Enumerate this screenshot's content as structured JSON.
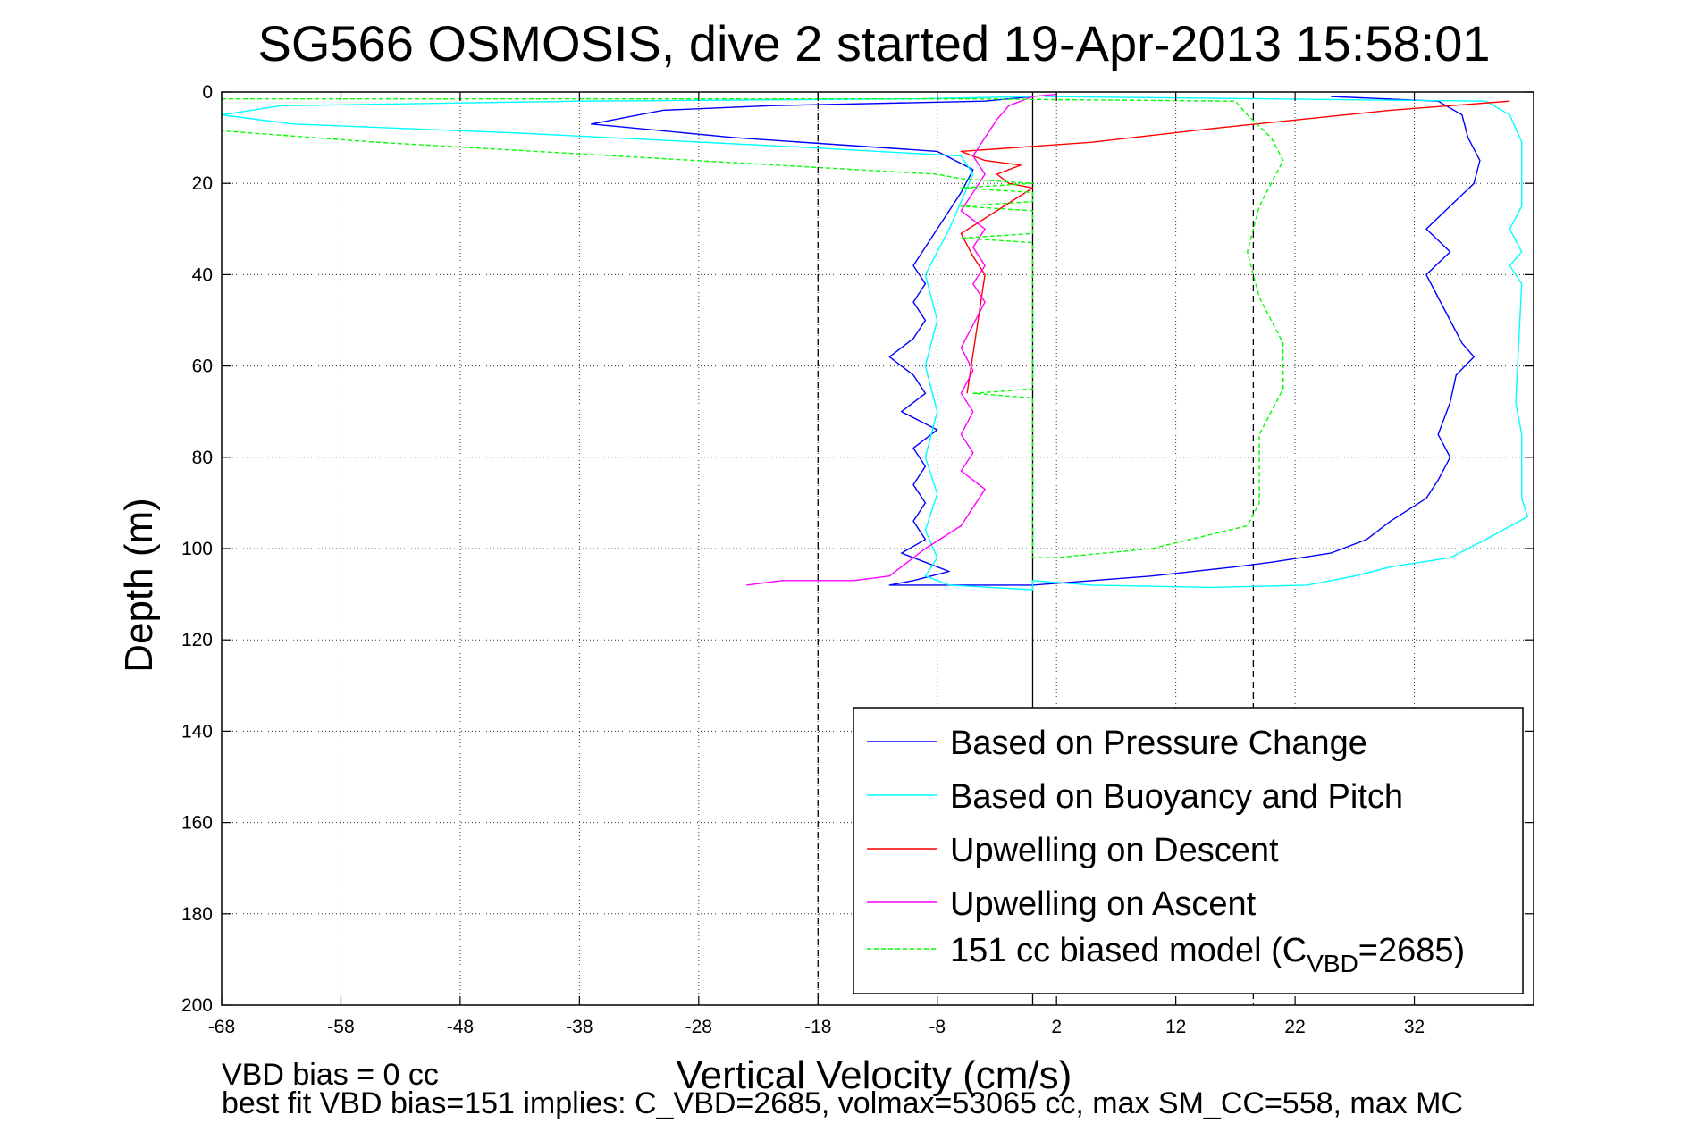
{
  "chart_data": {
    "type": "line",
    "title": "SG566 OSMOSIS, dive 2 started 19-Apr-2013 15:58:01",
    "xlabel": "Vertical Velocity (cm/s)",
    "ylabel": "Depth (m)",
    "xlim": [
      -68,
      42
    ],
    "ylim": [
      0,
      200
    ],
    "y_reversed": true,
    "grid": true,
    "legend_position": "bottom-right",
    "x_ticks": [
      -68,
      -58,
      -48,
      -38,
      -28,
      -18,
      -8,
      2,
      12,
      22,
      32
    ],
    "y_ticks": [
      0,
      20,
      40,
      60,
      80,
      100,
      120,
      140,
      160,
      180,
      200
    ],
    "reference_lines": [
      {
        "x": -18,
        "style": "dashed"
      },
      {
        "x": 0,
        "style": "solid"
      },
      {
        "x": 18.5,
        "style": "dashed"
      }
    ],
    "series": [
      {
        "name": "Based on Pressure Change",
        "color": "#0000ff",
        "style": "solid",
        "points": [
          [
            25,
            1
          ],
          [
            34,
            2
          ],
          [
            36,
            5
          ],
          [
            36.5,
            10
          ],
          [
            37.5,
            15
          ],
          [
            37,
            20
          ],
          [
            35,
            25
          ],
          [
            33,
            30
          ],
          [
            35,
            35
          ],
          [
            33,
            40
          ],
          [
            34,
            45
          ],
          [
            35,
            50
          ],
          [
            36,
            55
          ],
          [
            37,
            58
          ],
          [
            35.5,
            62
          ],
          [
            35,
            68
          ],
          [
            34,
            75
          ],
          [
            35,
            80
          ],
          [
            34,
            85
          ],
          [
            33,
            89
          ],
          [
            30,
            94
          ],
          [
            28,
            98
          ],
          [
            25,
            101
          ],
          [
            20,
            103
          ],
          [
            17,
            104
          ],
          [
            10,
            106
          ],
          [
            5,
            107
          ],
          [
            0,
            108
          ],
          [
            -5,
            108
          ],
          [
            -8,
            108
          ],
          [
            -12,
            108
          ],
          [
            -10,
            107
          ],
          [
            -7,
            105
          ],
          [
            -9,
            103
          ],
          [
            -11,
            101
          ],
          [
            -9,
            98
          ],
          [
            -10,
            94
          ],
          [
            -9,
            90
          ],
          [
            -10,
            86
          ],
          [
            -9,
            82
          ],
          [
            -10,
            78
          ],
          [
            -8,
            74
          ],
          [
            -11,
            70
          ],
          [
            -9,
            66
          ],
          [
            -10,
            62
          ],
          [
            -12,
            58
          ],
          [
            -10,
            54
          ],
          [
            -9,
            50
          ],
          [
            -10,
            46
          ],
          [
            -9,
            42
          ],
          [
            -10,
            38
          ],
          [
            -9,
            34
          ],
          [
            -8,
            30
          ],
          [
            -7,
            26
          ],
          [
            -6,
            22
          ],
          [
            -5,
            17
          ],
          [
            -8,
            13
          ],
          [
            -25,
            10
          ],
          [
            -37,
            7
          ],
          [
            -31,
            4
          ],
          [
            -22,
            3
          ],
          [
            -4,
            2
          ],
          [
            0,
            1
          ]
        ]
      },
      {
        "name": "Based on Buoyancy and Pitch",
        "color": "#00ffff",
        "style": "solid",
        "points": [
          [
            1,
            1
          ],
          [
            38,
            2
          ],
          [
            40,
            5
          ],
          [
            41,
            11
          ],
          [
            41,
            25
          ],
          [
            40,
            30
          ],
          [
            41,
            35
          ],
          [
            40,
            38
          ],
          [
            41,
            42
          ],
          [
            40.5,
            68
          ],
          [
            41,
            75
          ],
          [
            41,
            89
          ],
          [
            41.5,
            93
          ],
          [
            38,
            98
          ],
          [
            35,
            102
          ],
          [
            30,
            104
          ],
          [
            27,
            106
          ],
          [
            23,
            108
          ],
          [
            15,
            108.5
          ],
          [
            5,
            108
          ],
          [
            0,
            107
          ],
          [
            0,
            109
          ],
          [
            -7,
            108
          ],
          [
            -9,
            106
          ],
          [
            -8,
            102
          ],
          [
            -9,
            96
          ],
          [
            -8,
            88
          ],
          [
            -9,
            80
          ],
          [
            -8,
            70
          ],
          [
            -9,
            60
          ],
          [
            -8,
            50
          ],
          [
            -9,
            40
          ],
          [
            -7,
            30
          ],
          [
            -6,
            24
          ],
          [
            -5,
            18
          ],
          [
            -6,
            14
          ],
          [
            -20,
            12
          ],
          [
            -43,
            9
          ],
          [
            -62,
            7
          ],
          [
            -68,
            5
          ],
          [
            -63,
            3
          ],
          [
            -38,
            2
          ],
          [
            -10,
            1.5
          ],
          [
            0,
            1
          ]
        ]
      },
      {
        "name": "Upwelling on Descent",
        "color": "#ff0000",
        "style": "solid",
        "points": [
          [
            -5.5,
            66
          ],
          [
            -4,
            40
          ],
          [
            -5,
            36
          ],
          [
            -6,
            31
          ],
          [
            0,
            21
          ],
          [
            -2,
            20
          ],
          [
            -3,
            18
          ],
          [
            -1,
            16
          ],
          [
            -4,
            15
          ],
          [
            -6,
            13
          ],
          [
            5,
            11
          ],
          [
            15,
            8
          ],
          [
            30,
            4
          ],
          [
            40,
            2
          ]
        ]
      },
      {
        "name": "Upwelling on Ascent",
        "color": "#ff00ff",
        "style": "solid",
        "points": [
          [
            -24,
            108
          ],
          [
            -21,
            107
          ],
          [
            -15,
            107
          ],
          [
            -12,
            106
          ],
          [
            -11,
            104
          ],
          [
            -9,
            100
          ],
          [
            -6,
            95
          ],
          [
            -5,
            91
          ],
          [
            -4,
            87
          ],
          [
            -6,
            83
          ],
          [
            -5,
            79
          ],
          [
            -6,
            75
          ],
          [
            -5,
            70
          ],
          [
            -6,
            66
          ],
          [
            -5,
            61
          ],
          [
            -6,
            56
          ],
          [
            -5,
            51
          ],
          [
            -4,
            46
          ],
          [
            -5,
            42
          ],
          [
            -4,
            38
          ],
          [
            -5,
            34
          ],
          [
            -4,
            30
          ],
          [
            -6,
            26
          ],
          [
            -5,
            22
          ],
          [
            -4,
            18
          ],
          [
            -5,
            14
          ],
          [
            -4,
            10
          ],
          [
            -3,
            6
          ],
          [
            -2,
            3
          ],
          [
            0,
            1
          ],
          [
            2,
            0.5
          ]
        ]
      },
      {
        "name": "151 cc biased model (C_VBD=2685)",
        "color": "#00ff00",
        "style": "dashed",
        "points": [
          [
            -68,
            1.5
          ],
          [
            -60,
            1.5
          ],
          [
            -5,
            1.5
          ],
          [
            17,
            2
          ],
          [
            18,
            5
          ],
          [
            20,
            10
          ],
          [
            21,
            15
          ],
          [
            19,
            25
          ],
          [
            18,
            35
          ],
          [
            19,
            45
          ],
          [
            21,
            55
          ],
          [
            21,
            65
          ],
          [
            19,
            75
          ],
          [
            19,
            85
          ],
          [
            19,
            90
          ],
          [
            18,
            95
          ],
          [
            10,
            100
          ],
          [
            2,
            102
          ],
          [
            0,
            102
          ],
          [
            0,
            67
          ],
          [
            -5,
            66
          ],
          [
            0,
            65
          ],
          [
            0,
            33
          ],
          [
            -6,
            32
          ],
          [
            0,
            31
          ],
          [
            0,
            26
          ],
          [
            -6,
            25
          ],
          [
            0,
            24
          ],
          [
            0,
            22
          ],
          [
            -6,
            21
          ],
          [
            0,
            20
          ],
          [
            -6,
            19
          ],
          [
            -8,
            18
          ],
          [
            -35,
            14
          ],
          [
            -55,
            11
          ],
          [
            -68,
            8.5
          ]
        ]
      }
    ],
    "legend": [
      {
        "label": "Based on Pressure Change",
        "color": "#0000ff",
        "style": "solid"
      },
      {
        "label": "Based on Buoyancy and Pitch",
        "color": "#00ffff",
        "style": "solid"
      },
      {
        "label": "Upwelling on Descent",
        "color": "#ff0000",
        "style": "solid"
      },
      {
        "label": "Upwelling on Ascent",
        "color": "#ff00ff",
        "style": "solid"
      },
      {
        "label": "151 cc biased model (C",
        "sub": "VBD",
        "tail": "=2685)",
        "color": "#00ff00",
        "style": "dashed"
      }
    ],
    "annotations": [
      "VBD bias = 0 cc",
      "best fit VBD bias=151 implies: C_VBD=2685, volmax=53065 cc, max SM_CC=558, max MC"
    ]
  }
}
